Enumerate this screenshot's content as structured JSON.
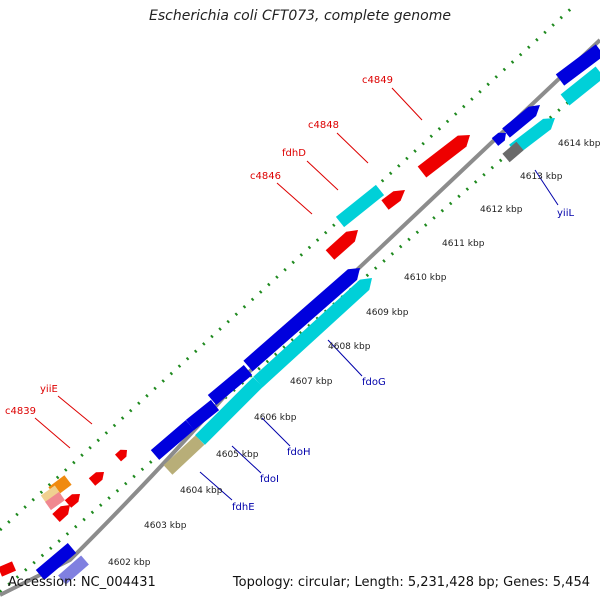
{
  "title": "Escherichia coli CFT073, complete genome",
  "accession_text": "Accession: NC_004431",
  "topology_text": "Topology: circular; Length: 5,231,428 bp; Genes: 5,454",
  "colors": {
    "backbone": "#8c8c8c",
    "tick": "#1f8a1f",
    "forward_gene": "#0000dd",
    "forward_gene_alt": "#00d0d8",
    "reverse_gene": "#ee0000",
    "reverse_label": "#dd0000",
    "forward_label": "#0000aa",
    "olive": "#b8ae78",
    "gray_gene": "#6a6a6a",
    "orange_gene": "#f08a10",
    "pale_gene": "#f0d090",
    "pink_gene": "#f08890",
    "lavender_gene": "#8080e0"
  },
  "scale_labels": [
    {
      "text": "4602 kbp"
    },
    {
      "text": "4603 kbp"
    },
    {
      "text": "4604 kbp"
    },
    {
      "text": "4605 kbp"
    },
    {
      "text": "4606 kbp"
    },
    {
      "text": "4607 kbp"
    },
    {
      "text": "4608 kbp"
    },
    {
      "text": "4609 kbp"
    },
    {
      "text": "4610 kbp"
    },
    {
      "text": "4611 kbp"
    },
    {
      "text": "4612 kbp"
    },
    {
      "text": "4613 kbp"
    },
    {
      "text": "4614 kbp"
    }
  ],
  "gene_labels": [
    {
      "text": "c4849",
      "strand": "reverse"
    },
    {
      "text": "c4848",
      "strand": "reverse"
    },
    {
      "text": "fdhD",
      "strand": "reverse"
    },
    {
      "text": "c4846",
      "strand": "reverse"
    },
    {
      "text": "yiiE",
      "strand": "reverse"
    },
    {
      "text": "c4839",
      "strand": "reverse"
    },
    {
      "text": "yiiL",
      "strand": "forward"
    },
    {
      "text": "fdoG",
      "strand": "forward"
    },
    {
      "text": "fdoH",
      "strand": "forward"
    },
    {
      "text": "fdoI",
      "strand": "forward"
    },
    {
      "text": "fdhE",
      "strand": "forward"
    }
  ]
}
